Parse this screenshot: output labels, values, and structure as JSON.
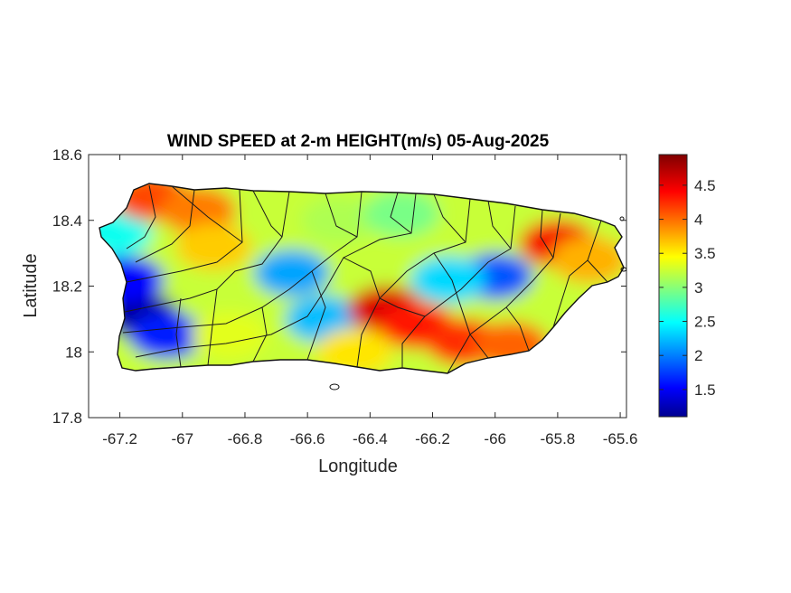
{
  "chart_data": {
    "type": "heatmap",
    "title": "WIND SPEED at 2-m HEIGHT(m/s) 05-Aug-2025",
    "xlabel": "Longitude",
    "ylabel": "Latitude",
    "xlim": [
      -67.3,
      -65.58
    ],
    "ylim": [
      17.8,
      18.6
    ],
    "x_ticks": [
      -67.2,
      -67,
      -66.8,
      -66.6,
      -66.4,
      -66.2,
      -66,
      -65.8,
      -65.6
    ],
    "x_tick_labels": [
      "-67.2",
      "-67",
      "-66.8",
      "-66.6",
      "-66.4",
      "-66.2",
      "-66",
      "-65.8",
      "-65.6"
    ],
    "y_ticks": [
      17.8,
      18,
      18.2,
      18.4,
      18.6
    ],
    "y_tick_labels": [
      "17.8",
      "18",
      "18.2",
      "18.4",
      "18.6"
    ],
    "colorbar": {
      "colormap": "jet",
      "range": [
        1.1,
        4.95
      ],
      "ticks": [
        1.5,
        2,
        2.5,
        3,
        3.5,
        4,
        4.5
      ],
      "tick_labels": [
        "1.5",
        "2",
        "2.5",
        "3",
        "3.5",
        "4",
        "4.5"
      ],
      "unit": "m/s"
    },
    "region": "Puerto Rico (municipality boundaries)",
    "field_features": [
      {
        "lon": -67.13,
        "lat": 18.11,
        "value": 1.2
      },
      {
        "lon": -67.18,
        "lat": 18.22,
        "value": 1.6
      },
      {
        "lon": -67.05,
        "lat": 18.05,
        "value": 1.7
      },
      {
        "lon": -67.22,
        "lat": 18.36,
        "value": 2.6
      },
      {
        "lon": -66.65,
        "lat": 18.24,
        "value": 2.2
      },
      {
        "lon": -66.55,
        "lat": 18.1,
        "value": 2.3
      },
      {
        "lon": -66.0,
        "lat": 18.23,
        "value": 1.9
      },
      {
        "lon": -66.15,
        "lat": 18.22,
        "value": 2.4
      },
      {
        "lon": -67.1,
        "lat": 18.47,
        "value": 4.2
      },
      {
        "lon": -66.95,
        "lat": 18.43,
        "value": 4.0
      },
      {
        "lon": -66.9,
        "lat": 18.32,
        "value": 3.7
      },
      {
        "lon": -66.35,
        "lat": 18.13,
        "value": 4.6
      },
      {
        "lon": -66.25,
        "lat": 18.08,
        "value": 4.4
      },
      {
        "lon": -66.1,
        "lat": 18.03,
        "value": 4.3
      },
      {
        "lon": -65.95,
        "lat": 18.02,
        "value": 4.1
      },
      {
        "lon": -65.8,
        "lat": 18.33,
        "value": 4.5
      },
      {
        "lon": -65.7,
        "lat": 18.28,
        "value": 3.8
      },
      {
        "lon": -66.5,
        "lat": 18.4,
        "value": 3.2
      },
      {
        "lon": -66.3,
        "lat": 18.42,
        "value": 3.0
      },
      {
        "lon": -66.85,
        "lat": 18.05,
        "value": 3.4
      },
      {
        "lon": -66.45,
        "lat": 18.0,
        "value": 3.6
      }
    ]
  }
}
